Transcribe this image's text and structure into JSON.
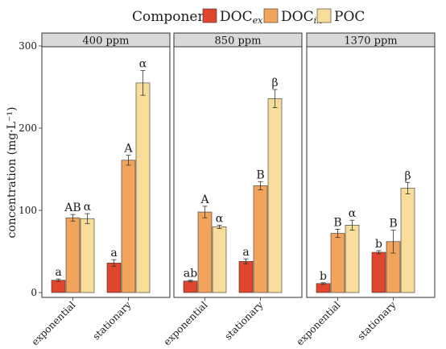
{
  "legend": {
    "title": "Component",
    "items": [
      {
        "base": "DOC",
        "sub": "ex",
        "color": "#e0452e"
      },
      {
        "base": "DOC",
        "sub": "in",
        "color": "#f2a45c"
      },
      {
        "base": "POC",
        "sub": "",
        "color": "#f7dc9a"
      }
    ]
  },
  "chart_data": {
    "type": "bar",
    "ylabel": "concentration (mg·L⁻¹)",
    "ylim": [
      0,
      300
    ],
    "yticks": [
      0,
      100,
      200,
      300
    ],
    "grid": false,
    "legend_placement": "top",
    "categories": [
      "exponential",
      "stationary"
    ],
    "series_names": [
      "DOCex",
      "DOCin",
      "POC"
    ],
    "series_colors": [
      "#e0452e",
      "#f2a45c",
      "#f7dc9a"
    ],
    "panels": [
      {
        "title": "400 ppm",
        "groups": [
          {
            "category": "exponential",
            "values": [
              15,
              91,
              90
            ],
            "errors": [
              1.5,
              4,
              6
            ],
            "labels": [
              "a",
              "AB",
              "α"
            ]
          },
          {
            "category": "stationary",
            "values": [
              36,
              161,
              255
            ],
            "errors": [
              4,
              6,
              15
            ],
            "labels": [
              "a",
              "A",
              "α"
            ]
          }
        ]
      },
      {
        "title": "850 ppm",
        "groups": [
          {
            "category": "exponential",
            "values": [
              14,
              98,
              80
            ],
            "errors": [
              1,
              7,
              2
            ],
            "labels": [
              "ab",
              "A",
              "α"
            ]
          },
          {
            "category": "stationary",
            "values": [
              38,
              130,
              236
            ],
            "errors": [
              3,
              5,
              11
            ],
            "labels": [
              "a",
              "B",
              "β"
            ]
          }
        ]
      },
      {
        "title": "1370 ppm",
        "groups": [
          {
            "category": "exponential",
            "values": [
              11,
              72,
              82
            ],
            "errors": [
              1,
              5,
              6
            ],
            "labels": [
              "b",
              "B",
              "α"
            ]
          },
          {
            "category": "stationary",
            "values": [
              49,
              62,
              127
            ],
            "errors": [
              2,
              14,
              7
            ],
            "labels": [
              "b",
              "B",
              "β"
            ]
          }
        ]
      }
    ]
  }
}
